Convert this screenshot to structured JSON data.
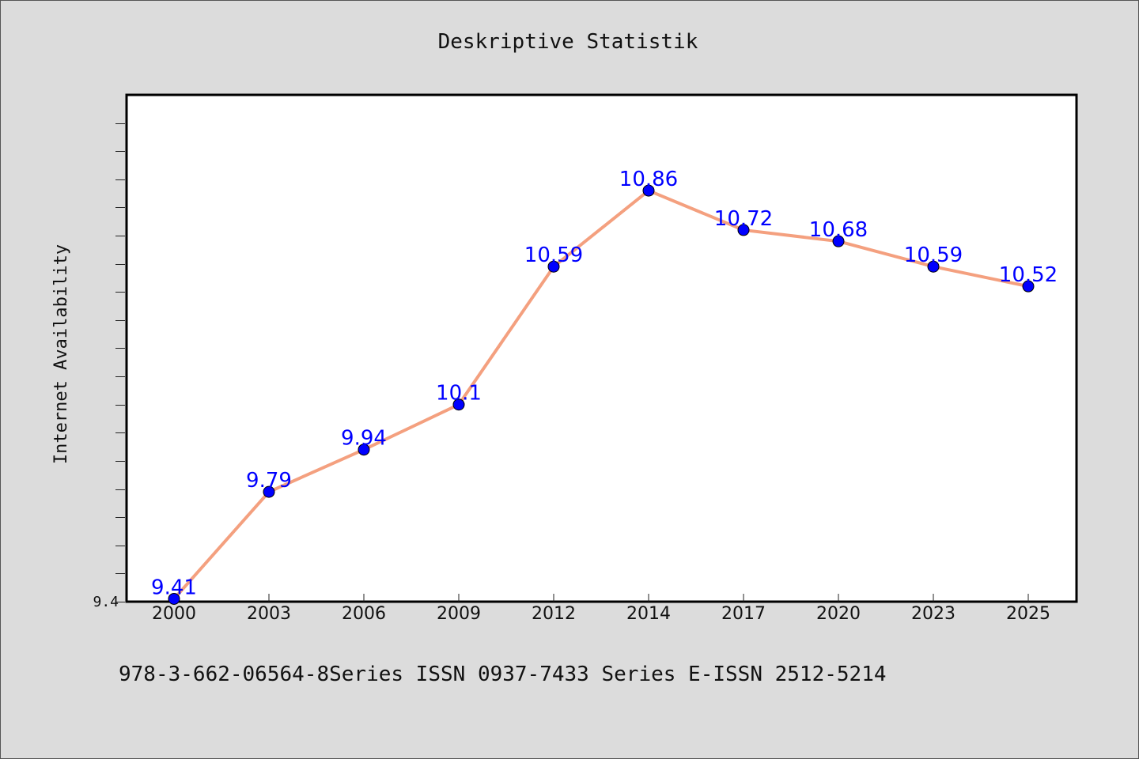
{
  "chart_data": {
    "type": "line",
    "title": "Deskriptive Statistik",
    "xlabel": "",
    "ylabel": "Internet Availability",
    "categories": [
      "2000",
      "2003",
      "2006",
      "2009",
      "2012",
      "2014",
      "2017",
      "2020",
      "2023",
      "2025"
    ],
    "series": [
      {
        "values": [
          9.41,
          9.79,
          9.94,
          10.1,
          10.59,
          10.86,
          10.72,
          10.68,
          10.59,
          10.52
        ],
        "data_labels": [
          "9.41",
          "9.79",
          "9.94",
          "10.1",
          "10.59",
          "10.86",
          "10.72",
          "10.68",
          "10.59",
          "10.52"
        ]
      }
    ],
    "y_tick_labels": [
      "9.4"
    ],
    "ylim": [
      9.4,
      11.2
    ],
    "grid": false,
    "line_color": "#f4a07f",
    "marker_color": "#0000ff",
    "data_label_color": "#0000ff",
    "background_color": "#dcdcdc",
    "plot_background_color": "#ffffff"
  },
  "footer": {
    "text": "978-3-662-06564-8Series ISSN 0937-7433 Series E-ISSN 2512-5214"
  }
}
